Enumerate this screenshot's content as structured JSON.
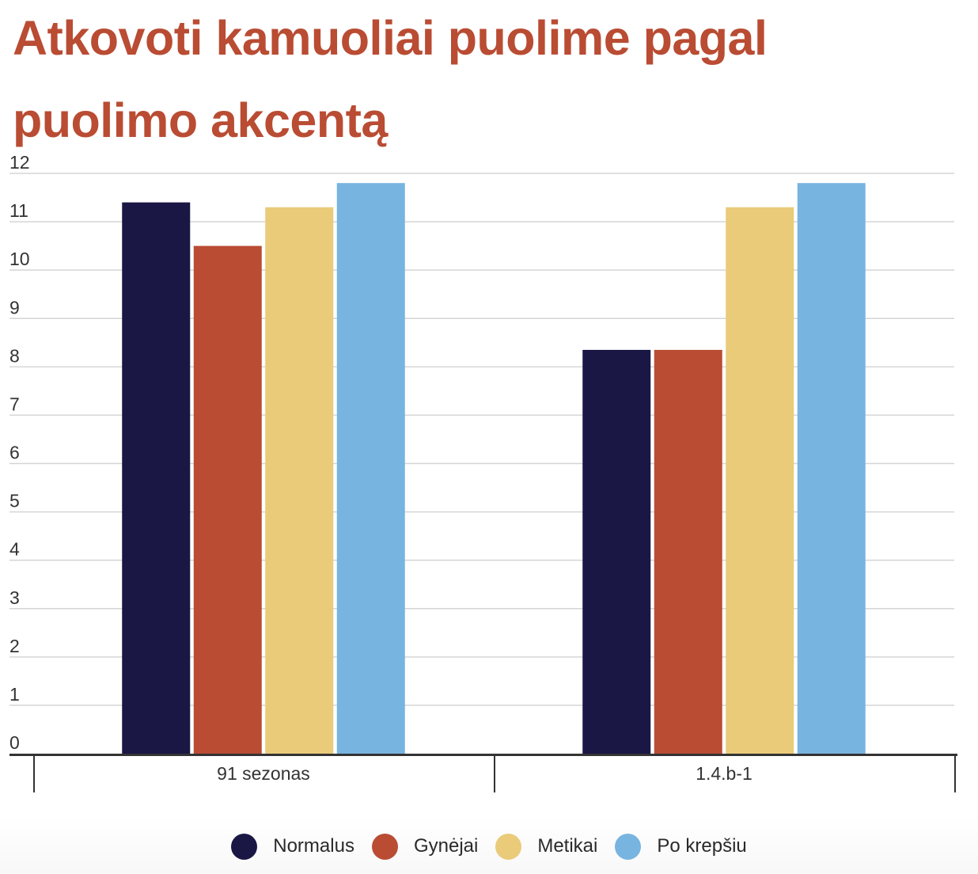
{
  "colors": {
    "title": "#b94c33",
    "grid": "#d5d5d5",
    "axis": "#333333",
    "tick_text": "#333333",
    "Normalus": "#1a1744",
    "Gynėjai": "#b94c33",
    "Metikai": "#e9cb7a",
    "Po krepšiu": "#78b4e0"
  },
  "chart_data": {
    "type": "bar",
    "title": "Atkovoti kamuoliai puolime pagal puolimo akcentą",
    "xlabel": "",
    "ylabel": "",
    "categories": [
      "91 sezonas",
      "1.4.b-1"
    ],
    "series": [
      {
        "name": "Normalus",
        "values": [
          11.4,
          8.35
        ]
      },
      {
        "name": "Gynėjai",
        "values": [
          10.5,
          8.35
        ]
      },
      {
        "name": "Metikai",
        "values": [
          11.3,
          11.3
        ]
      },
      {
        "name": "Po krepšiu",
        "values": [
          11.8,
          11.8
        ]
      }
    ],
    "ylim": [
      0,
      12
    ],
    "yticks": [
      0,
      1,
      2,
      3,
      4,
      5,
      6,
      7,
      8,
      9,
      10,
      11,
      12
    ],
    "grid": true,
    "legend_position": "bottom-center"
  }
}
